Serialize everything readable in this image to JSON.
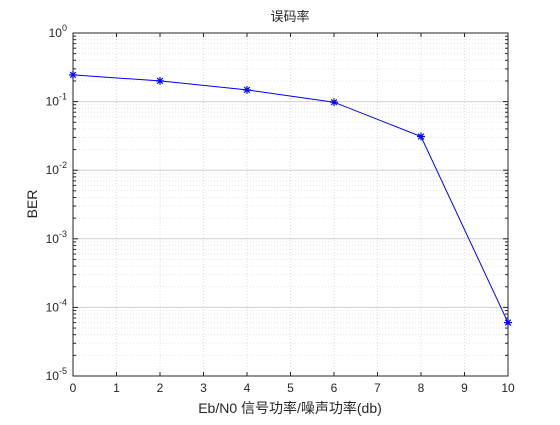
{
  "chart_data": {
    "type": "line",
    "title": "误码率",
    "xlabel": "Eb/N0 信号功率/噪声功率(db)",
    "ylabel": "BER",
    "xlim": [
      0,
      10
    ],
    "ylim": [
      1e-05,
      1
    ],
    "yscale": "log",
    "grid": true,
    "minor_grid": true,
    "x_ticks": [
      "0",
      "1",
      "2",
      "3",
      "4",
      "5",
      "6",
      "7",
      "8",
      "9",
      "10"
    ],
    "y_ticks": [
      {
        "base": "10",
        "exp": "-5"
      },
      {
        "base": "10",
        "exp": "-4"
      },
      {
        "base": "10",
        "exp": "-3"
      },
      {
        "base": "10",
        "exp": "-2"
      },
      {
        "base": "10",
        "exp": "-1"
      },
      {
        "base": "10",
        "exp": "0"
      }
    ],
    "series": [
      {
        "color": "#0000ff",
        "marker": "asterisk",
        "x": [
          0,
          2,
          4,
          6,
          8,
          10
        ],
        "y": [
          0.245,
          0.2,
          0.148,
          0.098,
          0.031,
          6e-05
        ]
      }
    ]
  }
}
